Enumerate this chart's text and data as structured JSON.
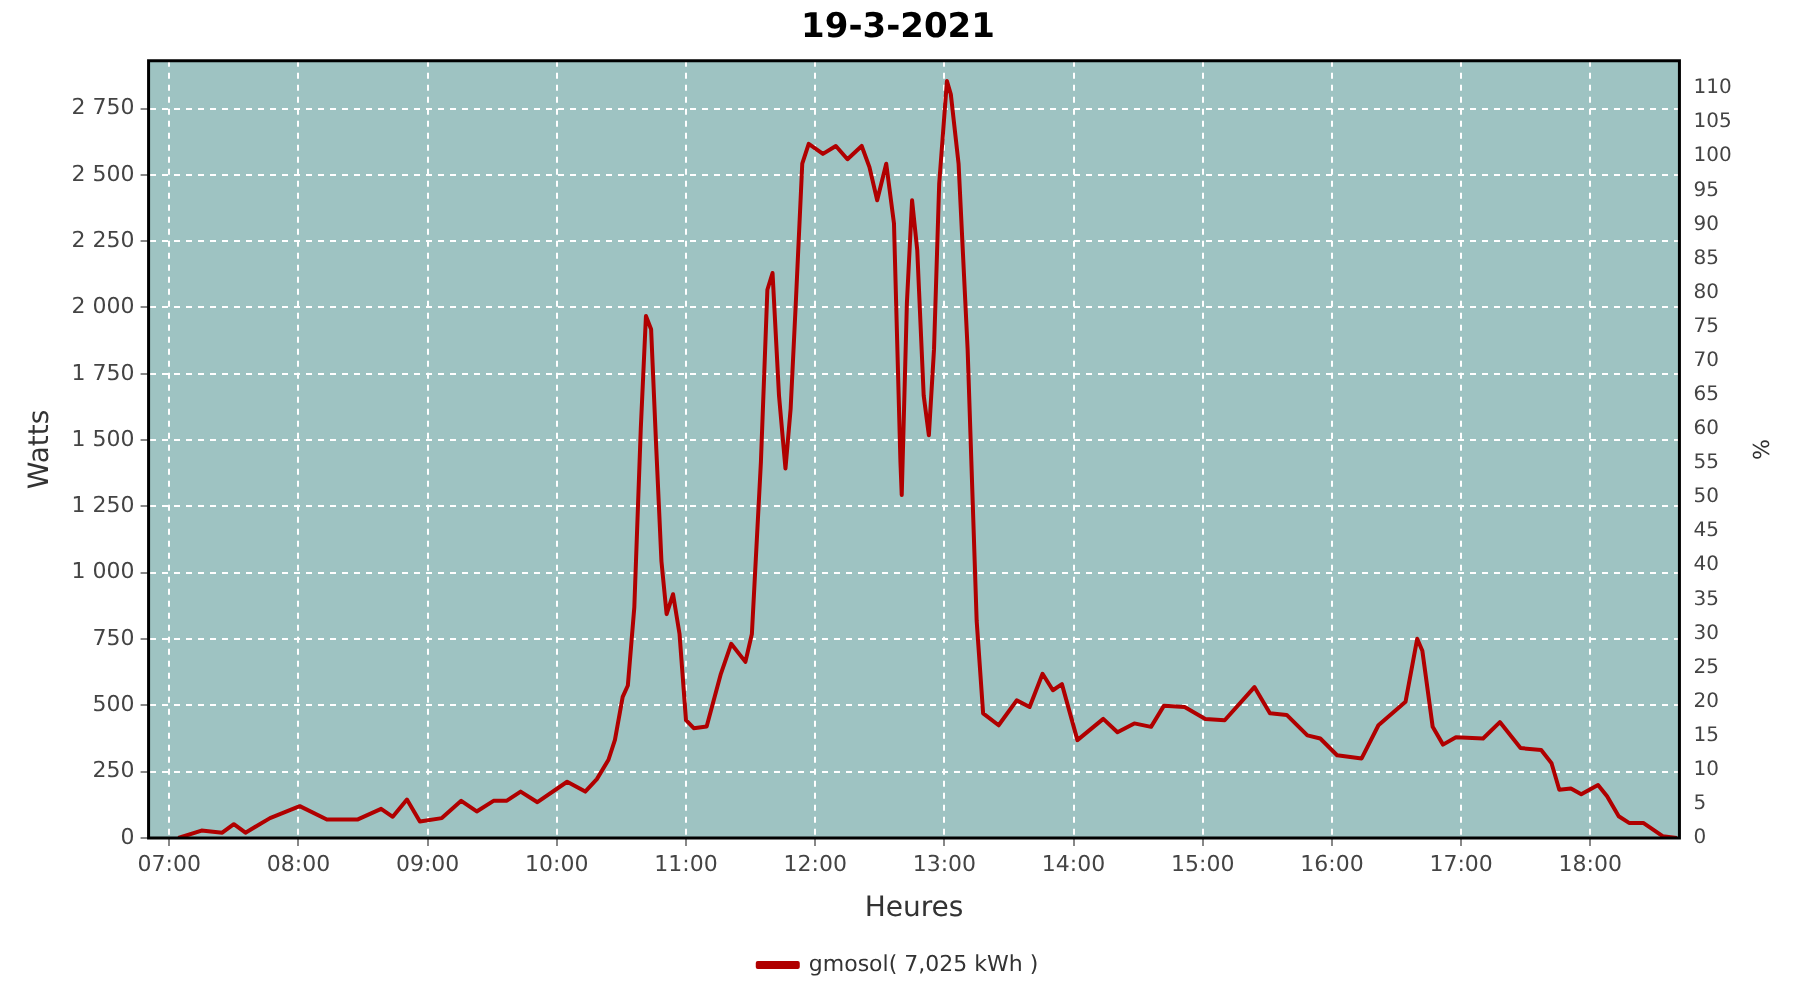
{
  "chart_data": {
    "type": "line",
    "title": "19-3-2021",
    "xlabel": "Heures",
    "ylabel": "Watts",
    "y2label": "%",
    "xlim": [
      6.84,
      18.69
    ],
    "xticks": [
      {
        "value": 7,
        "label": "07:00"
      },
      {
        "value": 8,
        "label": "08:00"
      },
      {
        "value": 9,
        "label": "09:00"
      },
      {
        "value": 10,
        "label": "10:00"
      },
      {
        "value": 11,
        "label": "11:00"
      },
      {
        "value": 12,
        "label": "12:00"
      },
      {
        "value": 13,
        "label": "13:00"
      },
      {
        "value": 14,
        "label": "14:00"
      },
      {
        "value": 15,
        "label": "15:00"
      },
      {
        "value": 16,
        "label": "16:00"
      },
      {
        "value": 17,
        "label": "17:00"
      },
      {
        "value": 18,
        "label": "18:00"
      }
    ],
    "ylim": [
      0,
      2930
    ],
    "yticks": [
      0,
      250,
      500,
      750,
      {
        "value": 1000,
        "label": "1 000"
      },
      {
        "value": 1250,
        "label": "1 250"
      },
      {
        "value": 1500,
        "label": "1 500"
      },
      {
        "value": 1750,
        "label": "1 750"
      },
      {
        "value": 2000,
        "label": "2 000"
      },
      {
        "value": 2250,
        "label": "2 250"
      },
      {
        "value": 2500,
        "label": "2 500"
      },
      {
        "value": 2750,
        "label": "2 750"
      }
    ],
    "y2lim": [
      0,
      114
    ],
    "y2ticks": [
      0,
      5,
      10,
      15,
      20,
      25,
      30,
      35,
      40,
      45,
      50,
      55,
      60,
      65,
      70,
      75,
      80,
      85,
      90,
      95,
      100,
      105,
      110
    ],
    "grid": true,
    "legend": "bottom",
    "marker": "none",
    "line_style": "solid",
    "series": [
      {
        "name": "gmosol( 7,025 kWh )",
        "color": "#b00000",
        "x": [
          7.07,
          7.25,
          7.41,
          7.5,
          7.59,
          7.78,
          8.01,
          8.22,
          8.46,
          8.64,
          8.73,
          8.84,
          8.94,
          9.11,
          9.26,
          9.38,
          9.51,
          9.61,
          9.72,
          9.85,
          10.08,
          10.22,
          10.31,
          10.4,
          10.45,
          10.51,
          10.55,
          10.6,
          10.65,
          10.69,
          10.73,
          10.77,
          10.81,
          10.85,
          10.9,
          10.95,
          11.0,
          11.06,
          11.16,
          11.27,
          11.35,
          11.46,
          11.51,
          11.58,
          11.63,
          11.67,
          11.72,
          11.77,
          11.81,
          11.85,
          11.9,
          11.95,
          12.06,
          12.16,
          12.25,
          12.36,
          12.42,
          12.48,
          12.55,
          12.61,
          12.66,
          12.67,
          12.71,
          12.75,
          12.79,
          12.84,
          12.88,
          12.92,
          12.96,
          13.02,
          13.05,
          13.11,
          13.18,
          13.25,
          13.3,
          13.42,
          13.56,
          13.66,
          13.76,
          13.84,
          13.91,
          14.03,
          14.23,
          14.34,
          14.47,
          14.6,
          14.7,
          14.86,
          15.02,
          15.17,
          15.4,
          15.52,
          15.65,
          15.81,
          15.91,
          16.04,
          16.23,
          16.36,
          16.57,
          16.66,
          16.7,
          16.78,
          16.86,
          16.96,
          17.17,
          17.3,
          17.46,
          17.62,
          17.7,
          17.76,
          17.85,
          17.93,
          18.06,
          18.13,
          18.22,
          18.3,
          18.41,
          18.56,
          18.67
        ],
        "values": [
          0,
          28,
          20,
          52,
          20,
          75,
          120,
          70,
          70,
          110,
          80,
          145,
          62,
          75,
          140,
          100,
          140,
          140,
          175,
          135,
          212,
          175,
          222,
          295,
          370,
          532,
          575,
          870,
          1543,
          1968,
          1918,
          1468,
          1043,
          844,
          919,
          769,
          444,
          414,
          420,
          619,
          732,
          664,
          769,
          1418,
          2067,
          2130,
          1668,
          1393,
          1618,
          2017,
          2542,
          2617,
          2579,
          2609,
          2559,
          2609,
          2529,
          2404,
          2542,
          2317,
          1418,
          1293,
          2017,
          2404,
          2217,
          1668,
          1518,
          1843,
          2467,
          2854,
          2804,
          2542,
          1843,
          819,
          470,
          425,
          519,
          494,
          619,
          557,
          580,
          369,
          449,
          399,
          432,
          419,
          499,
          494,
          449,
          444,
          569,
          470,
          464,
          387,
          375,
          312,
          300,
          425,
          514,
          751,
          706,
          419,
          352,
          380,
          375,
          437,
          339,
          332,
          282,
          182,
          187,
          165,
          200,
          157,
          82,
          57,
          57,
          7,
          0
        ]
      }
    ]
  }
}
